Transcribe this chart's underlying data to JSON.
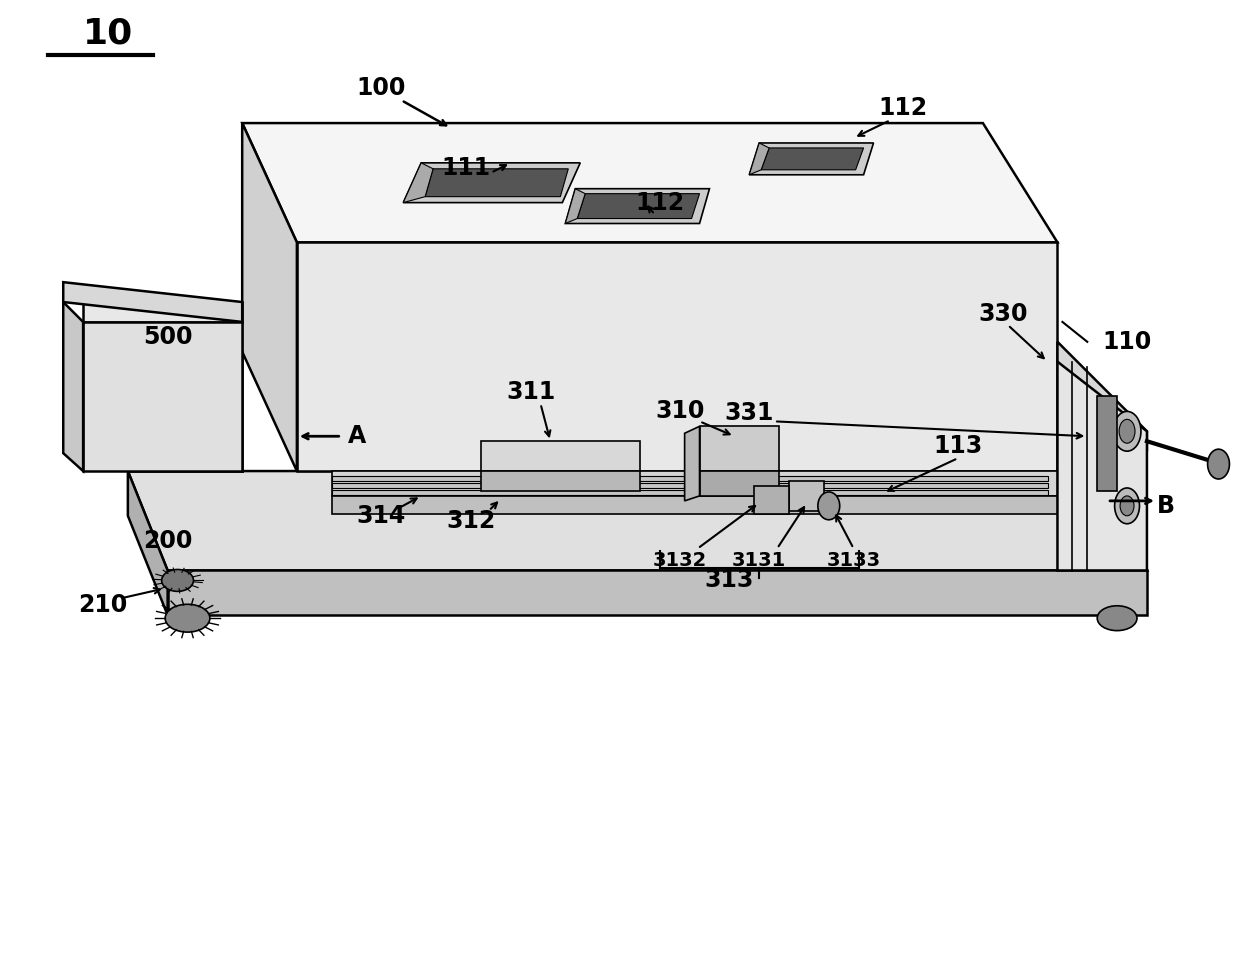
{
  "bg_color": "#ffffff",
  "line_color": "#000000",
  "lw_main": 1.8,
  "lw_thin": 1.2,
  "fig_width": 12.4,
  "fig_height": 9.61
}
